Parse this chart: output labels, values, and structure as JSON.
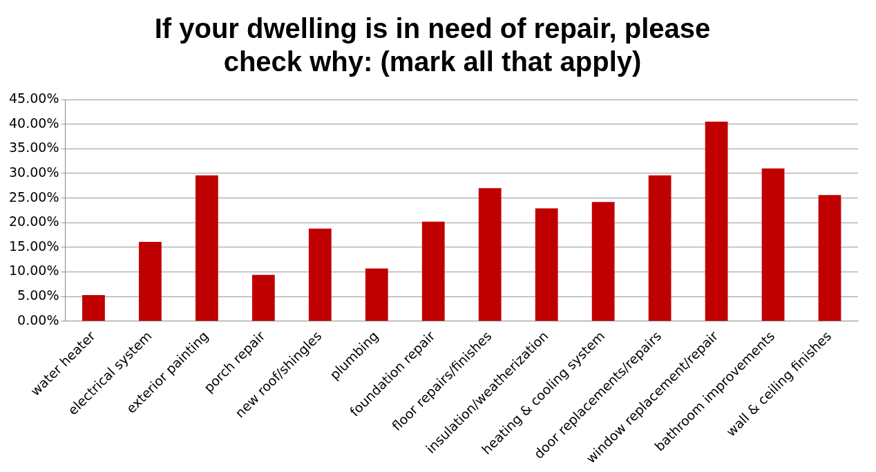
{
  "chart_data": {
    "type": "bar",
    "title": [
      "If your dwelling is in need of repair, please",
      "check why: (mark all that apply)"
    ],
    "categories": [
      "water heater",
      "electrical system",
      "exterior painting",
      "porch repair",
      "new roof/shingles",
      "plumbing",
      "foundation repair",
      "floor repairs/finishes",
      "insulation/weatherization",
      "heating & cooling system",
      "door replacements/repairs",
      "window replacement/repair",
      "bathroom improvements",
      "wall & ceiling finishes"
    ],
    "values": [
      5.3,
      16.1,
      29.6,
      9.4,
      18.8,
      10.7,
      20.2,
      27.0,
      22.9,
      24.2,
      29.6,
      40.5,
      31.0,
      25.6
    ],
    "color": "#c00000",
    "ylim": [
      0,
      45
    ],
    "yticks": [
      {
        "value": 0,
        "label": "0.00%"
      },
      {
        "value": 5,
        "label": "5.00%"
      },
      {
        "value": 10,
        "label": "10.00%"
      },
      {
        "value": 15,
        "label": "15.00%"
      },
      {
        "value": 20,
        "label": "20.00%"
      },
      {
        "value": 25,
        "label": "25.00%"
      },
      {
        "value": 30,
        "label": "30.00%"
      },
      {
        "value": 35,
        "label": "35.00%"
      },
      {
        "value": 40,
        "label": "40.00%"
      },
      {
        "value": 45,
        "label": "45.00%"
      }
    ],
    "grid": "y",
    "legend": false
  }
}
